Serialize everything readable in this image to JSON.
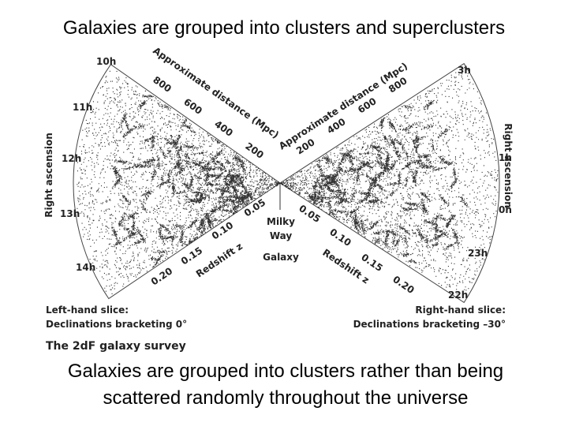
{
  "title": "Galaxies are grouped into clusters and superclusters",
  "diagram": {
    "left_hours": [
      "10h",
      "11h",
      "12h",
      "13h",
      "14h"
    ],
    "right_hours": [
      "3h",
      "1h",
      "0h",
      "23h",
      "22h"
    ],
    "axis_label": "Right ascension",
    "distance_label": "Approximate distance (Mpc)",
    "distances": [
      "800",
      "600",
      "400",
      "200"
    ],
    "redshift_label": "Redshift z",
    "redshifts": [
      "0.05",
      "0.10",
      "0.15",
      "0.20"
    ],
    "center_label": [
      "Milky",
      "Way",
      "Galaxy"
    ],
    "left_slice": [
      "Left-hand slice:",
      "Declinations bracketing 0°"
    ],
    "right_slice": [
      "Right-hand slice:",
      "Declinations bracketing –30°"
    ],
    "survey": "The 2dF galaxy survey"
  },
  "caption": [
    "Galaxies are grouped into clusters rather than being",
    "scattered randomly throughout the universe"
  ]
}
